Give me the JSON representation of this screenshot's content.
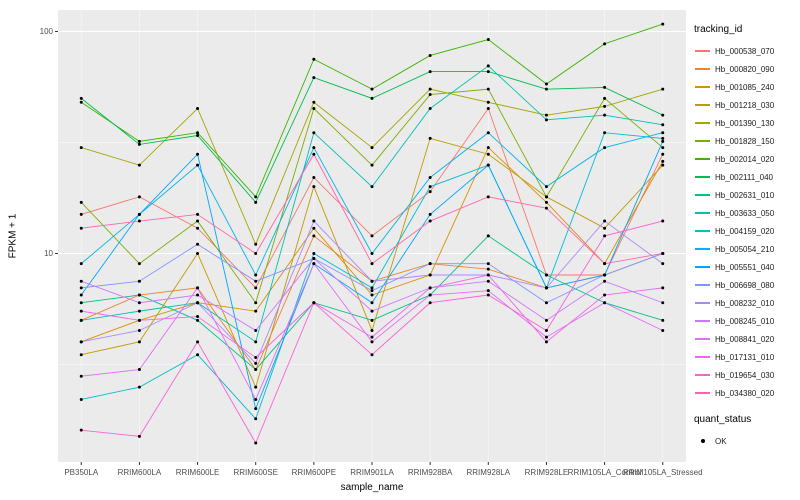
{
  "figure": {
    "background": "#FFFFFF",
    "panel_background": "#EBEBEB",
    "grid_major_color": "#FFFFFF",
    "grid_minor_color": "#FFFFFF",
    "tick_color": "#333333",
    "tick_label_color": "#4D4D4D"
  },
  "legend": {
    "tracking_title": "tracking_id",
    "quant_title": "quant_status",
    "quant_value": "OK",
    "quant_marker_color": "#000000"
  },
  "chart_data": {
    "type": "line",
    "title": "",
    "xlabel": "sample_name",
    "ylabel": "FPKM + 1",
    "y_scale": "log10",
    "ylim": [
      1.15,
      125
    ],
    "y_ticks": [
      10,
      100
    ],
    "y_minor_ticks": [
      3.162,
      31.62
    ],
    "grid": true,
    "legend_position": "right",
    "point_color": "#000000",
    "point_shape": "filled-circle",
    "categories": [
      "PB350LA",
      "RRIM600LA",
      "RRIM600LE",
      "RRIM600SE",
      "RRIM600PE",
      "RRIM901LA",
      "RRIM928BA",
      "RRIM928LA",
      "RRIM928LE",
      "RRIM105LA_Control",
      "RRIM105LA_Stressed"
    ],
    "series": [
      {
        "name": "Hb_000538_070",
        "color": "#F8766D",
        "values": [
          15,
          18,
          13,
          7,
          22,
          12,
          19,
          45,
          8,
          8,
          28
        ]
      },
      {
        "name": "Hb_000820_090",
        "color": "#EB8335",
        "values": [
          5,
          6.5,
          7,
          3,
          12,
          7.5,
          9,
          8.5,
          7,
          8,
          10
        ]
      },
      {
        "name": "Hb_001085_240",
        "color": "#D89000",
        "values": [
          4,
          5,
          6,
          5.5,
          13,
          6.5,
          8,
          30,
          17,
          9,
          26
        ]
      },
      {
        "name": "Hb_001218_030",
        "color": "#C09B00",
        "values": [
          3.5,
          4,
          10,
          2.5,
          20,
          4.5,
          33,
          28,
          18,
          13,
          25
        ]
      },
      {
        "name": "Hb_001390_130",
        "color": "#A3A500",
        "values": [
          30,
          25,
          45,
          11,
          48,
          30,
          55,
          48,
          42,
          46,
          55
        ]
      },
      {
        "name": "Hb_001828_150",
        "color": "#7CAE00",
        "values": [
          17,
          9,
          14,
          6,
          45,
          25,
          52,
          55,
          18,
          50,
          30
        ]
      },
      {
        "name": "Hb_002014_020",
        "color": "#39B600",
        "values": [
          48,
          32,
          35,
          18,
          75,
          55,
          78,
          92,
          58,
          88,
          108
        ]
      },
      {
        "name": "Hb_002111_040",
        "color": "#00BC51",
        "values": [
          50,
          31,
          34,
          17,
          62,
          50,
          66,
          66,
          55,
          56,
          42
        ]
      },
      {
        "name": "Hb_002631_010",
        "color": "#00C087",
        "values": [
          6,
          6.5,
          5,
          3,
          6,
          5,
          6.5,
          12,
          8,
          6,
          5
        ]
      },
      {
        "name": "Hb_003633_050",
        "color": "#00C0B2",
        "values": [
          5,
          5.5,
          6,
          4,
          35,
          20,
          45,
          70,
          40,
          42,
          38
        ]
      },
      {
        "name": "Hb_004159_020",
        "color": "#00BDD2",
        "values": [
          2.2,
          2.5,
          3.5,
          1.8,
          10,
          7,
          20,
          25,
          7,
          35,
          33
        ]
      },
      {
        "name": "Hb_005054_210",
        "color": "#00B4E9",
        "values": [
          9,
          15,
          25,
          8,
          30,
          10,
          22,
          35,
          20,
          30,
          35
        ]
      },
      {
        "name": "Hb_005551_040",
        "color": "#00A5FF",
        "values": [
          6.5,
          15,
          28,
          2,
          9,
          6,
          15,
          25,
          7,
          8,
          32
        ]
      },
      {
        "name": "Hb_006698_080",
        "color": "#7F96FF",
        "values": [
          7,
          7.5,
          11,
          7.5,
          9.5,
          6.8,
          9,
          9,
          6,
          8,
          10
        ]
      },
      {
        "name": "Hb_008232_010",
        "color": "#AC88FF",
        "values": [
          4,
          4.5,
          6,
          3.2,
          14,
          7.5,
          8,
          8,
          7,
          14,
          9
        ]
      },
      {
        "name": "Hb_008245_010",
        "color": "#CD79FF",
        "values": [
          7.5,
          6,
          6.5,
          4.5,
          9.5,
          5.5,
          7,
          7.5,
          5,
          7.5,
          6
        ]
      },
      {
        "name": "Hb_008841_020",
        "color": "#E26EF7",
        "values": [
          2.8,
          3,
          7,
          2.2,
          9,
          4,
          6.5,
          6.8,
          4.2,
          6,
          4.5
        ]
      },
      {
        "name": "Hb_017131_010",
        "color": "#F166E8",
        "values": [
          5.5,
          5,
          5.2,
          3.4,
          6,
          4.2,
          7,
          8,
          4,
          6.5,
          7
        ]
      },
      {
        "name": "Hb_019654_030",
        "color": "#FB61D7",
        "values": [
          1.6,
          1.5,
          4,
          1.4,
          6,
          3.5,
          6,
          6.5,
          4.5,
          12,
          14
        ]
      },
      {
        "name": "Hb_034380_020",
        "color": "#FF65AC",
        "values": [
          13,
          14,
          15,
          10,
          28,
          9,
          14,
          18,
          16,
          9,
          10
        ]
      }
    ]
  }
}
